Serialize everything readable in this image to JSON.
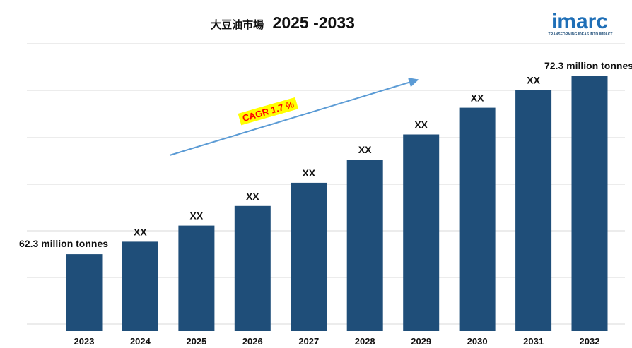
{
  "logo": {
    "word": "imarc",
    "tagline": "TRANSFORMING IDEAS INTO IMPACT"
  },
  "chart_data": {
    "type": "bar",
    "title_prefix": "大豆油市場",
    "title_years": "2025 -2033",
    "categories": [
      "2023",
      "2024",
      "2025",
      "2026",
      "2027",
      "2028",
      "2029",
      "2030",
      "2031",
      "2032"
    ],
    "values": [
      62.3,
      63.0,
      63.9,
      65.0,
      66.3,
      67.6,
      69.0,
      70.5,
      71.5,
      72.3
    ],
    "value_labels": [
      "62.3 million tonnes",
      "XX",
      "XX",
      "XX",
      "XX",
      "XX",
      "XX",
      "XX",
      "XX",
      "72.3 million tonnes"
    ],
    "unit": "million tonnes",
    "ylim": [
      58.0,
      72.3
    ],
    "cagr_label": "CAGR 1.7 %",
    "grid": true,
    "bar_color": "#1f4e79",
    "accent_colors": {
      "cagr_text": "#ff0000",
      "cagr_highlight": "#ffff00",
      "trend_arrow": "#5b9bd5",
      "logo": "#1f6fb7"
    }
  }
}
